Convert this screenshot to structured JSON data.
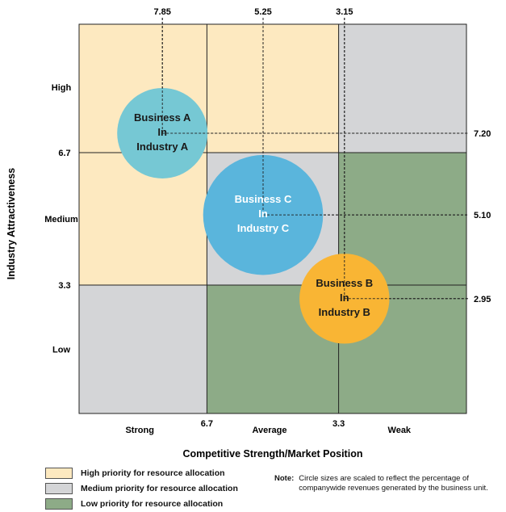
{
  "chart_data": {
    "type": "scatter",
    "subtype": "bubble-matrix",
    "xlabel": "Competitive Strength/Market Position",
    "ylabel": "Industry Attractiveness",
    "xlim": [
      10,
      0
    ],
    "ylim": [
      0,
      10
    ],
    "x_thresholds": [
      "6.7",
      "3.3"
    ],
    "y_thresholds": [
      "6.7",
      "3.3"
    ],
    "x_zone_labels": [
      "Strong",
      "Average",
      "Weak"
    ],
    "y_zone_labels": [
      "High",
      "Medium",
      "Low"
    ],
    "zones": [
      {
        "row": 0,
        "col": 0,
        "priority": "high"
      },
      {
        "row": 0,
        "col": 1,
        "priority": "high"
      },
      {
        "row": 0,
        "col": 2,
        "priority": "medium"
      },
      {
        "row": 1,
        "col": 0,
        "priority": "high"
      },
      {
        "row": 1,
        "col": 1,
        "priority": "medium"
      },
      {
        "row": 1,
        "col": 2,
        "priority": "low"
      },
      {
        "row": 2,
        "col": 0,
        "priority": "medium"
      },
      {
        "row": 2,
        "col": 1,
        "priority": "low"
      },
      {
        "row": 2,
        "col": 2,
        "priority": "low"
      }
    ],
    "bubbles": [
      {
        "lines": [
          "Business A",
          "In",
          "Industry A"
        ],
        "x": 7.85,
        "y": 7.2,
        "x_label": "7.85",
        "y_label": "7.20",
        "size": 1.0,
        "color": "#76c8d4",
        "text_color": "#1a1a1a"
      },
      {
        "lines": [
          "Business C",
          "In",
          "Industry C"
        ],
        "x": 5.25,
        "y": 5.1,
        "x_label": "5.25",
        "y_label": "5.10",
        "size": 1.76,
        "color": "#5ab5dc",
        "text_color": "#ffffff"
      },
      {
        "lines": [
          "Business B",
          "In",
          "Industry B"
        ],
        "x": 3.15,
        "y": 2.95,
        "x_label": "3.15",
        "y_label": "2.95",
        "size": 0.99,
        "color": "#f9b534",
        "text_color": "#1a1a1a"
      }
    ],
    "colors": {
      "high": "#fde9c0",
      "medium": "#d4d5d7",
      "low": "#8dab87"
    }
  },
  "legend": {
    "items": [
      {
        "label": "High priority for resource allocation",
        "color": "#fde9c0"
      },
      {
        "label": "Medium priority for resource allocation",
        "color": "#d4d5d7"
      },
      {
        "label": "Low priority for resource allocation",
        "color": "#8dab87"
      }
    ]
  },
  "note": {
    "label": "Note:",
    "text": "Circle sizes are scaled to reflect the percentage of companywide revenues generated by the business unit."
  }
}
